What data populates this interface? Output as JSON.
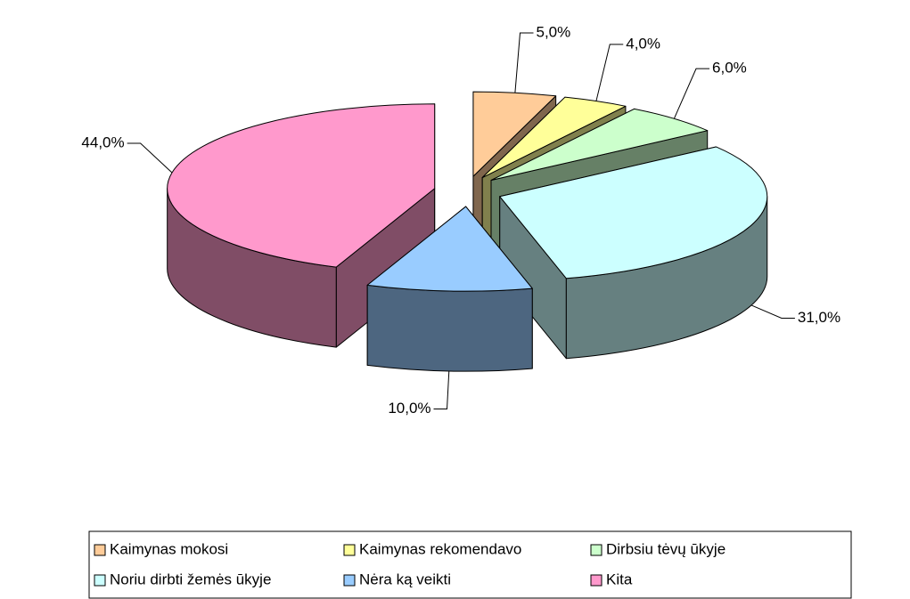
{
  "chart_data": {
    "type": "pie3d",
    "categories": [
      "Kaimynas mokosi",
      "Kaimynas rekomendavo",
      "Dirbsiu tėvų ūkyje",
      "Noriu dirbti žemės ūkyje",
      "Nėra ką veikti",
      "Kita"
    ],
    "values": [
      5,
      4,
      6,
      31,
      10,
      44
    ],
    "value_labels": [
      "5,0%",
      "4,0%",
      "6,0%",
      "31,0%",
      "10,0%",
      "44,0%"
    ],
    "colors": [
      "#ffcc99",
      "#ffff99",
      "#ccffcc",
      "#ccffff",
      "#99ccff",
      "#ff99cc"
    ],
    "legend": "bottom"
  }
}
